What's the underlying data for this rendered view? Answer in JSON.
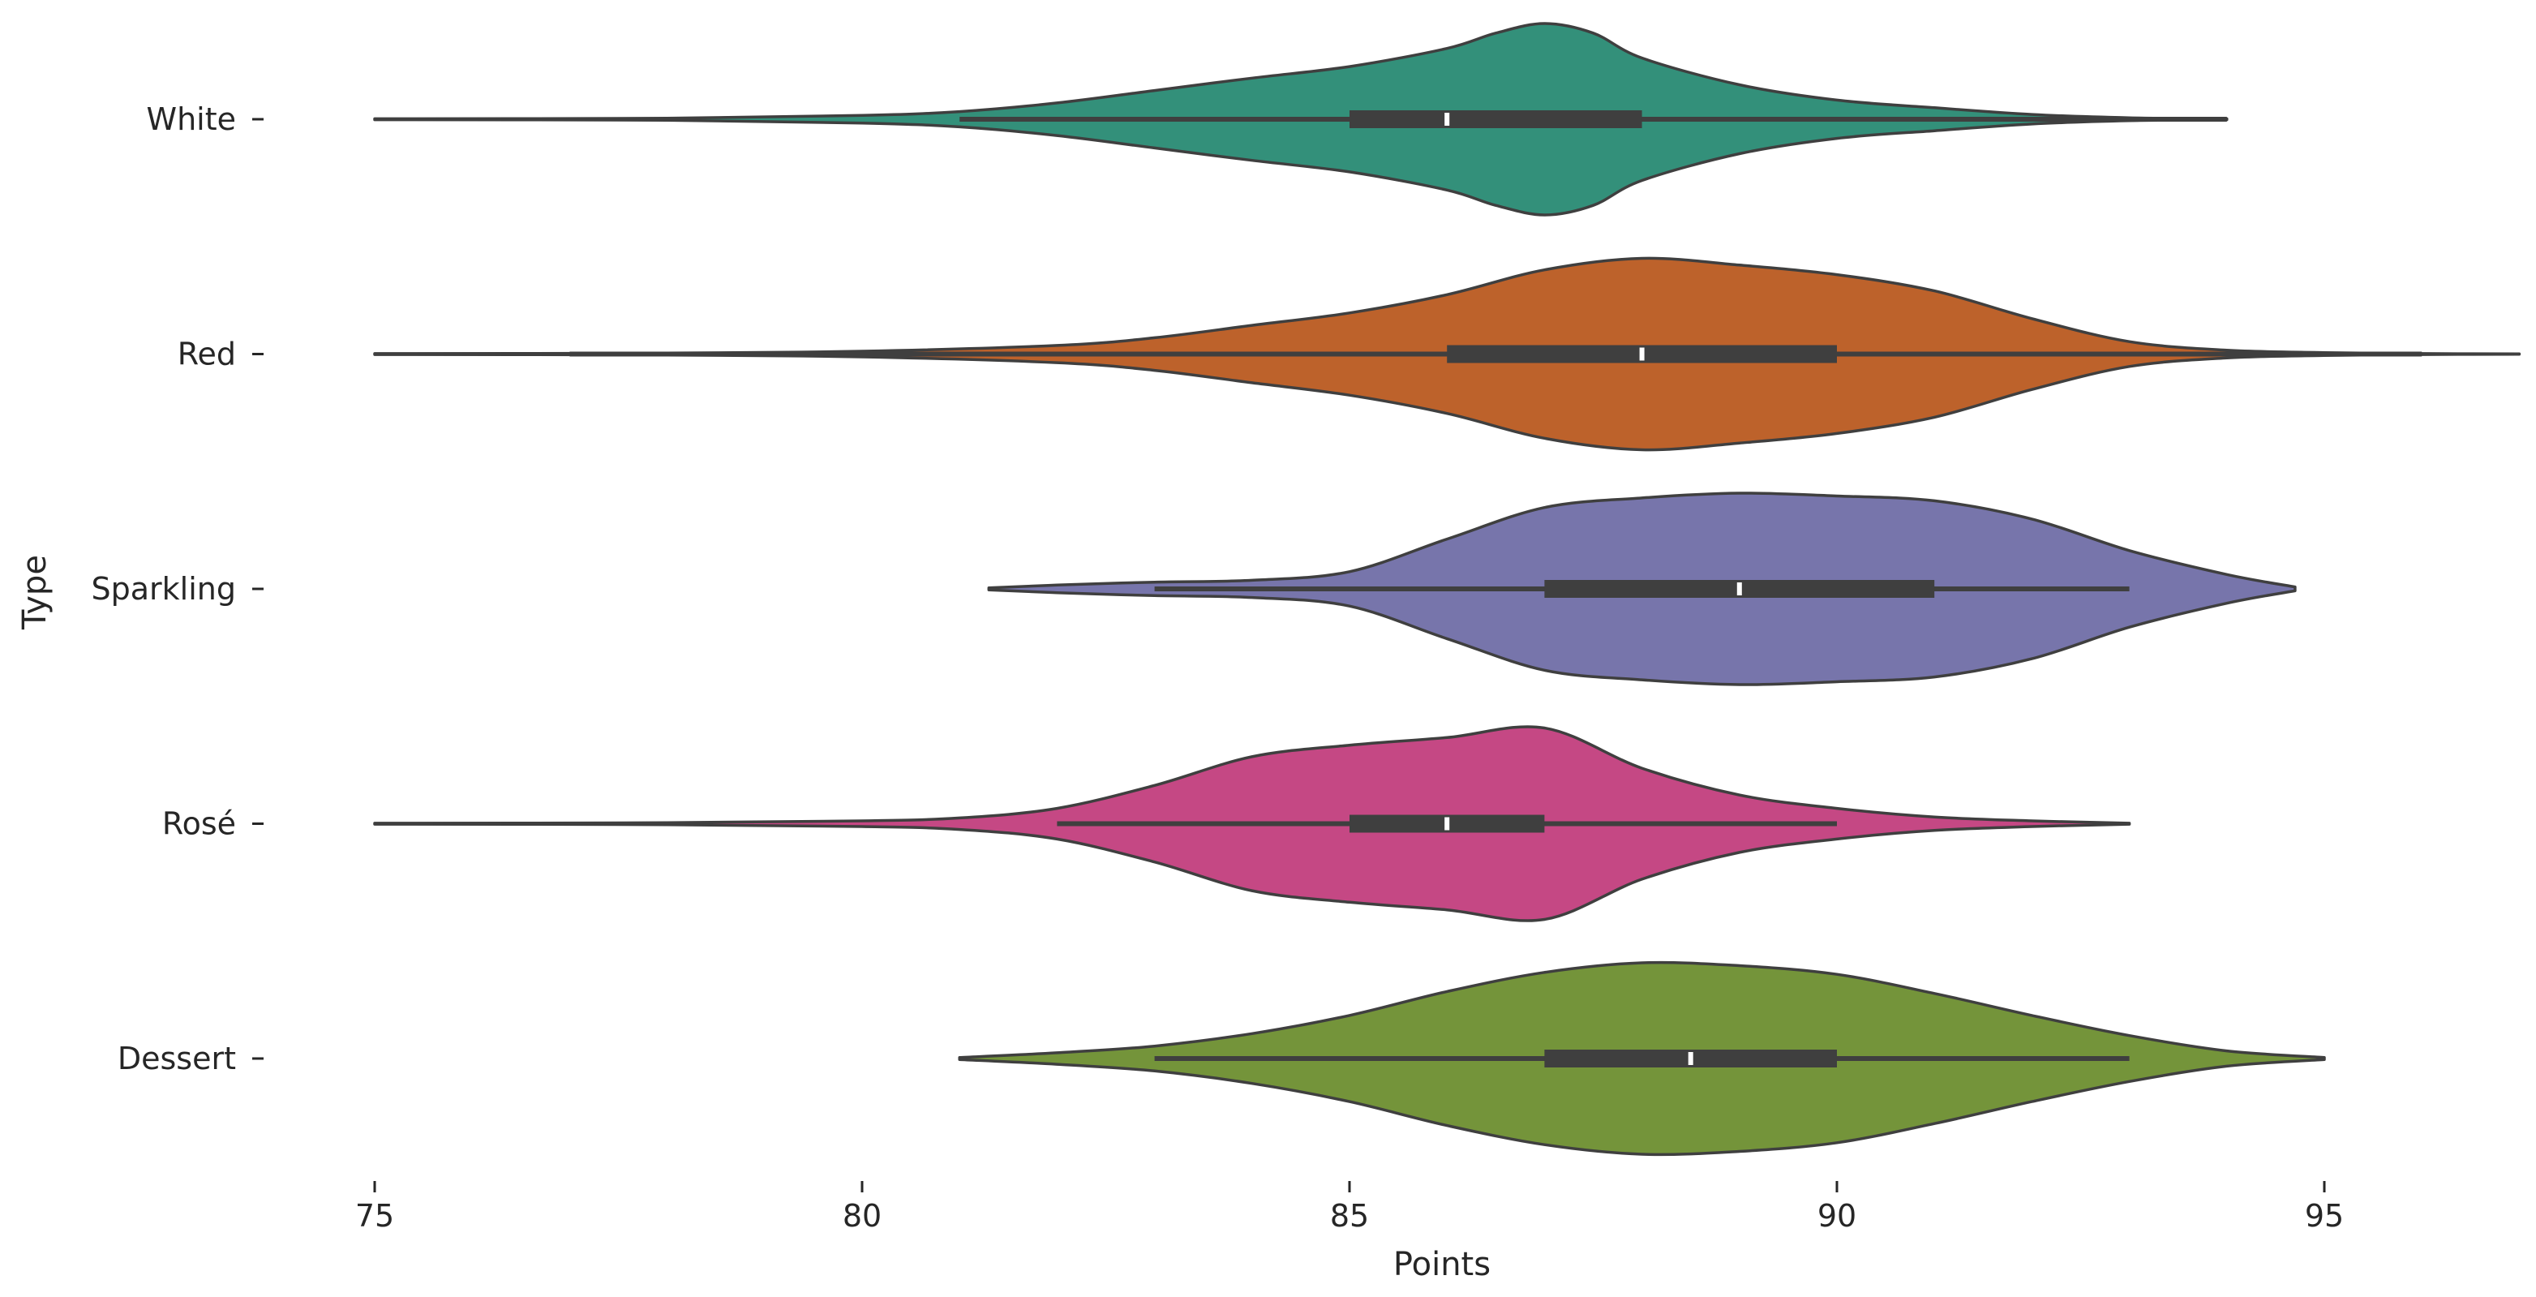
{
  "chart_data": {
    "type": "violin",
    "orientation": "horizontal",
    "xlabel": "Points",
    "ylabel": "Type",
    "xlim": [
      75,
      97
    ],
    "xticks": [
      75,
      80,
      85,
      90,
      95
    ],
    "grid": false,
    "legend": "none",
    "categories": [
      "White",
      "Red",
      "Sparkling",
      "Rosé",
      "Dessert"
    ],
    "series": [
      {
        "name": "White",
        "color": "#33907a",
        "kde_range": [
          75,
          94
        ],
        "box": {
          "whisker_low": 81,
          "q1": 85,
          "median": 86,
          "q3": 88,
          "whisker_high": 94
        },
        "density": [
          [
            75,
            0.005
          ],
          [
            78,
            0.01
          ],
          [
            80,
            0.04
          ],
          [
            81,
            0.08
          ],
          [
            82,
            0.17
          ],
          [
            83,
            0.3
          ],
          [
            84,
            0.43
          ],
          [
            85,
            0.55
          ],
          [
            86,
            0.74
          ],
          [
            86.5,
            0.9
          ],
          [
            87,
            1.0
          ],
          [
            87.5,
            0.9
          ],
          [
            88,
            0.64
          ],
          [
            89,
            0.36
          ],
          [
            90,
            0.2
          ],
          [
            91,
            0.12
          ],
          [
            92,
            0.05
          ],
          [
            93,
            0.015
          ],
          [
            94,
            0.005
          ]
        ]
      },
      {
        "name": "Red",
        "color": "#bd622b",
        "kde_range": [
          75,
          97
        ],
        "box": {
          "whisker_low": 77,
          "q1": 86,
          "median": 88,
          "q3": 90,
          "whisker_high": 96
        },
        "density": [
          [
            75,
            0.005
          ],
          [
            78,
            0.01
          ],
          [
            80,
            0.03
          ],
          [
            82,
            0.09
          ],
          [
            83,
            0.17
          ],
          [
            84,
            0.3
          ],
          [
            85,
            0.43
          ],
          [
            86,
            0.62
          ],
          [
            87,
            0.88
          ],
          [
            88,
            1.0
          ],
          [
            89,
            0.93
          ],
          [
            90,
            0.83
          ],
          [
            91,
            0.66
          ],
          [
            92,
            0.37
          ],
          [
            93,
            0.13
          ],
          [
            94,
            0.04
          ],
          [
            95,
            0.015
          ],
          [
            96,
            0.005
          ],
          [
            97,
            0.002
          ]
        ]
      },
      {
        "name": "Sparkling",
        "color": "#7775ab",
        "kde_range": [
          81.3,
          94.7
        ],
        "box": {
          "whisker_low": 83,
          "q1": 87,
          "median": 89,
          "q3": 91,
          "whisker_high": 93
        },
        "density": [
          [
            81.3,
            0.01
          ],
          [
            82,
            0.04
          ],
          [
            83,
            0.07
          ],
          [
            84,
            0.09
          ],
          [
            85,
            0.18
          ],
          [
            86,
            0.52
          ],
          [
            87,
            0.85
          ],
          [
            88,
            0.95
          ],
          [
            89,
            1.0
          ],
          [
            90,
            0.97
          ],
          [
            91,
            0.92
          ],
          [
            92,
            0.73
          ],
          [
            93,
            0.4
          ],
          [
            94,
            0.15
          ],
          [
            94.7,
            0.02
          ]
        ]
      },
      {
        "name": "Rosé",
        "color": "#c54884",
        "kde_range": [
          75,
          93
        ],
        "box": {
          "whisker_low": 82,
          "q1": 85,
          "median": 86,
          "q3": 87,
          "whisker_high": 90
        },
        "density": [
          [
            75,
            0.005
          ],
          [
            78,
            0.01
          ],
          [
            80,
            0.03
          ],
          [
            81,
            0.06
          ],
          [
            82,
            0.16
          ],
          [
            83,
            0.4
          ],
          [
            84,
            0.7
          ],
          [
            85,
            0.82
          ],
          [
            86,
            0.9
          ],
          [
            87,
            1.0
          ],
          [
            88,
            0.58
          ],
          [
            89,
            0.3
          ],
          [
            90,
            0.16
          ],
          [
            91,
            0.07
          ],
          [
            92,
            0.03
          ],
          [
            93,
            0.005
          ]
        ]
      },
      {
        "name": "Dessert",
        "color": "#74943a",
        "kde_range": [
          81,
          95
        ],
        "box": {
          "whisker_low": 83,
          "q1": 87,
          "median": 88.5,
          "q3": 90,
          "whisker_high": 93
        },
        "density": [
          [
            81,
            0.01
          ],
          [
            82,
            0.06
          ],
          [
            83,
            0.13
          ],
          [
            84,
            0.26
          ],
          [
            85,
            0.45
          ],
          [
            86,
            0.7
          ],
          [
            87,
            0.9
          ],
          [
            88,
            1.0
          ],
          [
            89,
            0.97
          ],
          [
            90,
            0.88
          ],
          [
            91,
            0.68
          ],
          [
            92,
            0.45
          ],
          [
            93,
            0.24
          ],
          [
            94,
            0.08
          ],
          [
            95,
            0.01
          ]
        ]
      }
    ]
  }
}
